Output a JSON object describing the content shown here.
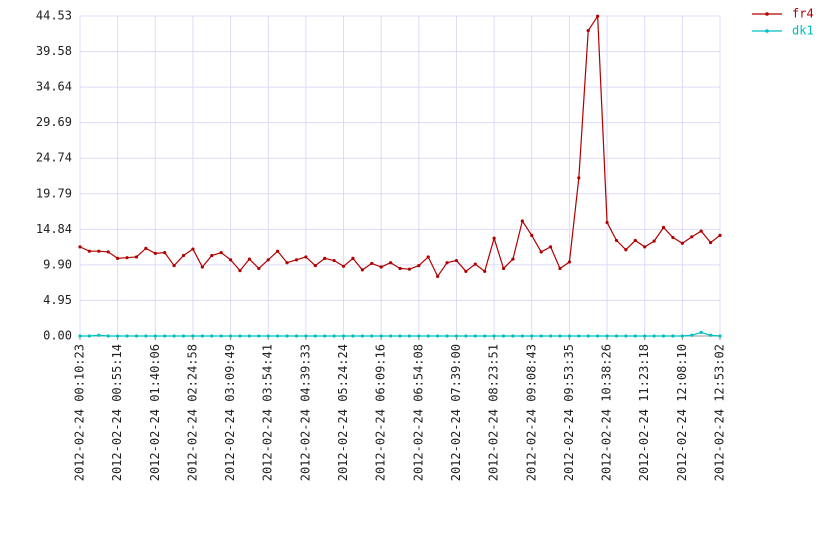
{
  "chart_data": {
    "type": "line",
    "categories": [
      "2012-02-24 00:10:23",
      null,
      null,
      null,
      "2012-02-24 00:55:14",
      null,
      null,
      null,
      "2012-02-24 01:40:06",
      null,
      null,
      null,
      "2012-02-24 02:24:58",
      null,
      null,
      null,
      "2012-02-24 03:09:49",
      null,
      null,
      null,
      "2012-02-24 03:54:41",
      null,
      null,
      null,
      "2012-02-24 04:39:33",
      null,
      null,
      null,
      "2012-02-24 05:24:24",
      null,
      null,
      null,
      "2012-02-24 06:09:16",
      null,
      null,
      null,
      "2012-02-24 06:54:08",
      null,
      null,
      null,
      "2012-02-24 07:39:00",
      null,
      null,
      null,
      "2012-02-24 08:23:51",
      null,
      null,
      null,
      "2012-02-24 09:08:43",
      null,
      null,
      null,
      "2012-02-24 09:53:35",
      null,
      null,
      null,
      "2012-02-24 10:38:26",
      null,
      null,
      null,
      "2012-02-24 11:23:18",
      null,
      null,
      null,
      "2012-02-24 12:08:10",
      null,
      null,
      null,
      "2012-02-24 12:53:02"
    ],
    "series": [
      {
        "name": "fr4",
        "color": "#b00000",
        "values": [
          12.4,
          11.8,
          11.8,
          11.7,
          10.8,
          10.9,
          11.0,
          12.2,
          11.5,
          11.6,
          9.8,
          11.2,
          12.1,
          9.6,
          11.2,
          11.6,
          10.6,
          9.1,
          10.7,
          9.4,
          10.6,
          11.8,
          10.2,
          10.6,
          11.0,
          9.8,
          10.8,
          10.5,
          9.7,
          10.8,
          9.2,
          10.1,
          9.6,
          10.2,
          9.4,
          9.3,
          9.8,
          11.0,
          8.3,
          10.2,
          10.5,
          9.0,
          10.0,
          9.0,
          13.6,
          9.4,
          10.7,
          16.0,
          14.0,
          11.7,
          12.4,
          9.4,
          10.3,
          22.0,
          42.5,
          44.5,
          15.8,
          13.3,
          12.0,
          13.3,
          12.4,
          13.2,
          15.1,
          13.7,
          12.9,
          13.8,
          14.6,
          13.0,
          14.0
        ]
      },
      {
        "name": "dk1",
        "color": "#00c0c0",
        "values": [
          0,
          0,
          0.1,
          0,
          0,
          0,
          0,
          0,
          0,
          0,
          0,
          0,
          0,
          0,
          0,
          0,
          0,
          0,
          0,
          0,
          0,
          0,
          0,
          0,
          0,
          0,
          0,
          0,
          0,
          0,
          0,
          0,
          0,
          0,
          0,
          0,
          0,
          0,
          0,
          0,
          0,
          0,
          0,
          0,
          0,
          0,
          0,
          0,
          0,
          0,
          0,
          0,
          0,
          0,
          0,
          0,
          0,
          0,
          0,
          0,
          0,
          0,
          0,
          0,
          0,
          0.1,
          0.5,
          0.1,
          0
        ]
      }
    ],
    "ylim": [
      0,
      44.53
    ],
    "yticks": [
      {
        "value": 0,
        "label": "0.00"
      },
      4.95,
      {
        "value": 9.9,
        "label": "9.90"
      },
      14.84,
      19.79,
      24.74,
      29.69,
      34.64,
      39.58,
      44.53
    ],
    "grid": true,
    "legend": "top-right"
  }
}
